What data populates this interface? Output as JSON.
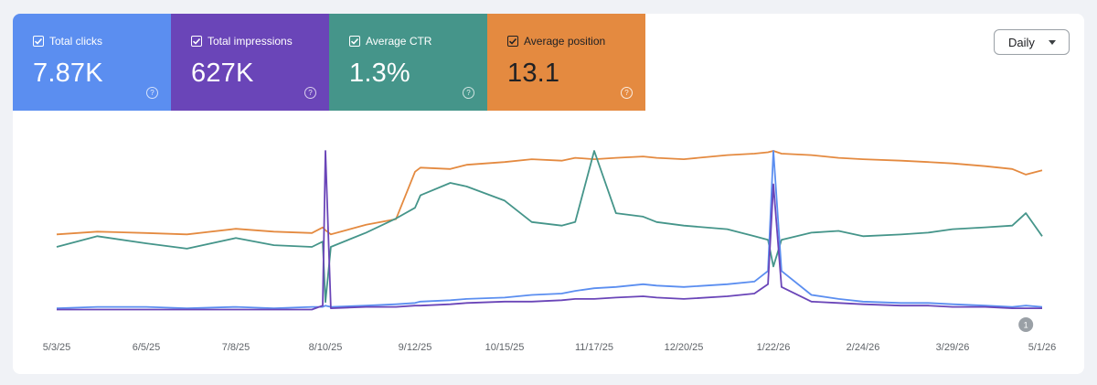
{
  "metrics": [
    {
      "key": "clicks",
      "label": "Total clicks",
      "value": "7.87K",
      "color": "#5b8ef0",
      "checked": true
    },
    {
      "key": "impressions",
      "label": "Total impressions",
      "value": "627K",
      "color": "#6a45b8",
      "checked": true
    },
    {
      "key": "ctr",
      "label": "Average CTR",
      "value": "1.3%",
      "color": "#45958a",
      "checked": true
    },
    {
      "key": "position",
      "label": "Average position",
      "value": "13.1",
      "color": "#e48a40",
      "checked": true
    }
  ],
  "help_glyph": "?",
  "dropdown": {
    "label": "Daily"
  },
  "annotation": {
    "label": "1",
    "date": "4/25/26"
  },
  "chart_data": {
    "type": "line",
    "x": [
      "5/3/25",
      "5/18/25",
      "6/5/25",
      "6/20/25",
      "7/8/25",
      "7/22/25",
      "8/5/25",
      "8/9/25",
      "8/10/25",
      "8/12/25",
      "8/25/25",
      "9/5/25",
      "9/12/25",
      "9/14/25",
      "9/25/25",
      "10/1/25",
      "10/15/25",
      "10/25/25",
      "11/5/25",
      "11/10/25",
      "11/17/25",
      "11/25/25",
      "12/5/25",
      "12/10/25",
      "12/20/25",
      "1/5/26",
      "1/15/26",
      "1/20/26",
      "1/22/26",
      "1/25/26",
      "2/5/26",
      "2/15/26",
      "2/24/26",
      "3/10/26",
      "3/20/26",
      "3/29/26",
      "4/10/26",
      "4/20/26",
      "4/25/26",
      "5/1/26"
    ],
    "xticks": [
      "5/3/25",
      "6/5/25",
      "7/8/25",
      "8/10/25",
      "9/12/25",
      "10/15/25",
      "11/17/25",
      "12/20/25",
      "1/22/26",
      "2/24/26",
      "3/29/26",
      "5/1/26"
    ],
    "series": [
      {
        "key": "position",
        "color": "#e48a40",
        "values": [
          55,
          57,
          56,
          55,
          59,
          57,
          56,
          60,
          58,
          55,
          62,
          66,
          100,
          103,
          102,
          105,
          107,
          109,
          108,
          110,
          109,
          110,
          111,
          110,
          109,
          112,
          113,
          114,
          115,
          113,
          112,
          110,
          109,
          108,
          107,
          106,
          104,
          102,
          98,
          101
        ]
      },
      {
        "key": "ctr",
        "color": "#45958a",
        "values": [
          36,
          42,
          38,
          35,
          41,
          37,
          36,
          39,
          5,
          36,
          44,
          52,
          58,
          65,
          72,
          70,
          62,
          50,
          48,
          50,
          90,
          55,
          53,
          50,
          48,
          46,
          42,
          40,
          25,
          40,
          44,
          45,
          42,
          43,
          44,
          46,
          47,
          48,
          55,
          42
        ]
      },
      {
        "key": "clicks",
        "color": "#5b8ef0",
        "values": [
          2,
          3,
          3,
          2,
          3,
          2,
          3,
          3,
          4,
          3,
          4,
          5,
          6,
          7,
          8,
          9,
          10,
          12,
          13,
          15,
          17,
          18,
          20,
          19,
          18,
          20,
          22,
          30,
          120,
          30,
          12,
          9,
          7,
          6,
          6,
          5,
          4,
          3,
          4,
          3
        ]
      },
      {
        "key": "impressions",
        "color": "#6a45b8",
        "values": [
          1,
          1,
          1,
          1,
          1,
          1,
          1,
          4,
          120,
          2,
          3,
          3,
          4,
          4,
          5,
          6,
          7,
          7,
          8,
          9,
          9,
          10,
          11,
          10,
          9,
          11,
          13,
          20,
          95,
          18,
          7,
          6,
          5,
          4,
          4,
          3,
          3,
          2,
          2,
          2
        ]
      }
    ]
  }
}
